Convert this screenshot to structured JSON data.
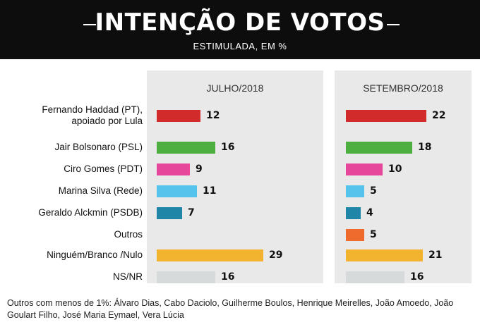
{
  "chart_data": {
    "type": "bar",
    "title": "INTENÇÃO DE VOTOS",
    "subtitle": "ESTIMULADA, EM %",
    "panels": [
      "JULHO/2018",
      "SETEMBRO/2018"
    ],
    "categories": [
      "Fernando Haddad (PT),\napoiado por Lula",
      "Jair Bolsonaro (PSL)",
      "Ciro Gomes (PDT)",
      "Marina Silva (Rede)",
      "Geraldo Alckmin (PSDB)",
      "Outros",
      "Ninguém/Branco /Nulo",
      "NS/NR"
    ],
    "colors": [
      "#d22b2b",
      "#4caf3f",
      "#e6479a",
      "#55c3ec",
      "#1f86a8",
      "#ee6b2d",
      "#f2b32e",
      "#d7dadb"
    ],
    "series": [
      {
        "name": "JULHO/2018",
        "values": [
          12,
          16,
          9,
          11,
          7,
          null,
          29,
          16
        ]
      },
      {
        "name": "SETEMBRO/2018",
        "values": [
          22,
          18,
          10,
          5,
          4,
          5,
          21,
          16
        ]
      }
    ],
    "xlim": [
      0,
      30
    ]
  },
  "footnote": "Outros com menos de 1%: Álvaro Dias, Cabo Daciolo, Guilherme Boulos, Henrique Meirelles, João Amoedo, João Goulart Filho, José Maria Eymael, Vera Lúcia"
}
